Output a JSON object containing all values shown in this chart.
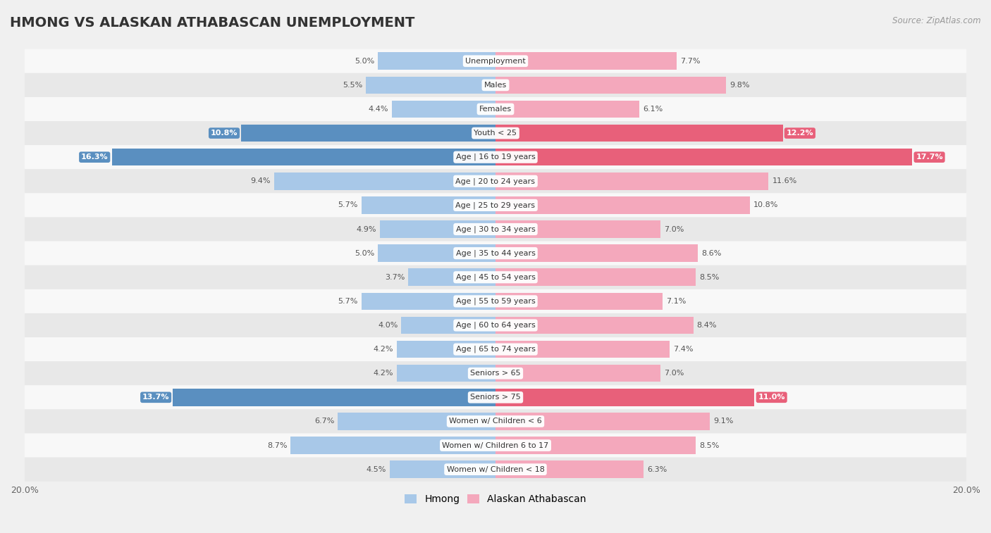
{
  "title": "HMONG VS ALASKAN ATHABASCAN UNEMPLOYMENT",
  "source": "Source: ZipAtlas.com",
  "categories": [
    "Unemployment",
    "Males",
    "Females",
    "Youth < 25",
    "Age | 16 to 19 years",
    "Age | 20 to 24 years",
    "Age | 25 to 29 years",
    "Age | 30 to 34 years",
    "Age | 35 to 44 years",
    "Age | 45 to 54 years",
    "Age | 55 to 59 years",
    "Age | 60 to 64 years",
    "Age | 65 to 74 years",
    "Seniors > 65",
    "Seniors > 75",
    "Women w/ Children < 6",
    "Women w/ Children 6 to 17",
    "Women w/ Children < 18"
  ],
  "hmong": [
    5.0,
    5.5,
    4.4,
    10.8,
    16.3,
    9.4,
    5.7,
    4.9,
    5.0,
    3.7,
    5.7,
    4.0,
    4.2,
    4.2,
    13.7,
    6.7,
    8.7,
    4.5
  ],
  "alaskan": [
    7.7,
    9.8,
    6.1,
    12.2,
    17.7,
    11.6,
    10.8,
    7.0,
    8.6,
    8.5,
    7.1,
    8.4,
    7.4,
    7.0,
    11.0,
    9.1,
    8.5,
    6.3
  ],
  "hmong_color": "#a8c8e8",
  "alaskan_color": "#f4a8bc",
  "hmong_highlight_color": "#5a8fc0",
  "alaskan_highlight_color": "#e8607a",
  "highlight_indices": [
    3,
    4,
    14
  ],
  "xlim": 20.0,
  "bar_height": 0.72,
  "bg_color": "#f0f0f0",
  "row_bg_light": "#f8f8f8",
  "row_bg_dark": "#e8e8e8",
  "label_fontsize": 8.0,
  "title_fontsize": 14,
  "source_fontsize": 8.5
}
